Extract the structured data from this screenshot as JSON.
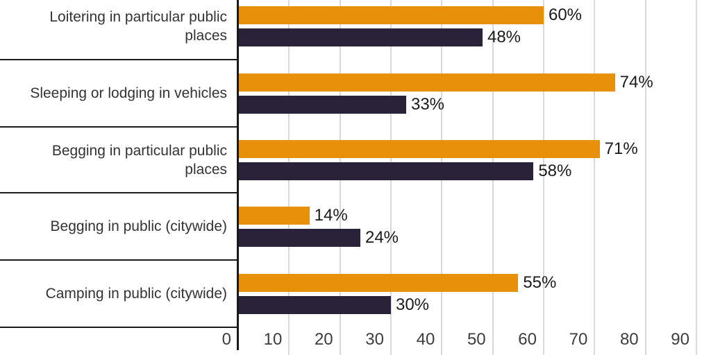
{
  "colors": {
    "orange_series": "#E8900A",
    "navy_series": "#2A2239",
    "gridline": "#D9D9D9",
    "axis_and_dividers": "#1A1A1A",
    "category_text": "#333333",
    "tick_text": "#3D3D3D",
    "value_text": "#1A1A1A",
    "background": "#FFFFFF"
  },
  "chart_data": {
    "type": "bar",
    "orientation": "horizontal",
    "categories": [
      "Loitering in particular public places",
      "Sleeping or lodging in vehicles",
      "Begging in particular public places",
      "Begging in public (citywide)",
      "Camping in public (citywide)"
    ],
    "category_lines": [
      [
        "Loitering in particular public",
        "places"
      ],
      [
        "Sleeping or lodging in vehicles"
      ],
      [
        "Begging in particular public",
        "places"
      ],
      [
        "Begging in public (citywide)"
      ],
      [
        "Camping in public (citywide)"
      ]
    ],
    "series": [
      {
        "key": "orange",
        "color": "#E8900A",
        "values": [
          60,
          74,
          71,
          14,
          55
        ],
        "labels": [
          "60%",
          "74%",
          "71%",
          "14%",
          "55%"
        ]
      },
      {
        "key": "navy",
        "color": "#2A2239",
        "values": [
          48,
          33,
          58,
          24,
          30
        ],
        "labels": [
          "48%",
          "33%",
          "58%",
          "24%",
          "30%"
        ]
      }
    ],
    "x_axis": {
      "tick_labels": [
        "0",
        "10",
        "20",
        "30",
        "40",
        "50",
        "60",
        "70",
        "80",
        "90"
      ],
      "tick_values": [
        0,
        10,
        20,
        30,
        40,
        50,
        60,
        70,
        80,
        90
      ],
      "visible_max": 92.8,
      "grid": true
    },
    "legend": "none",
    "value_suffix": "%"
  }
}
